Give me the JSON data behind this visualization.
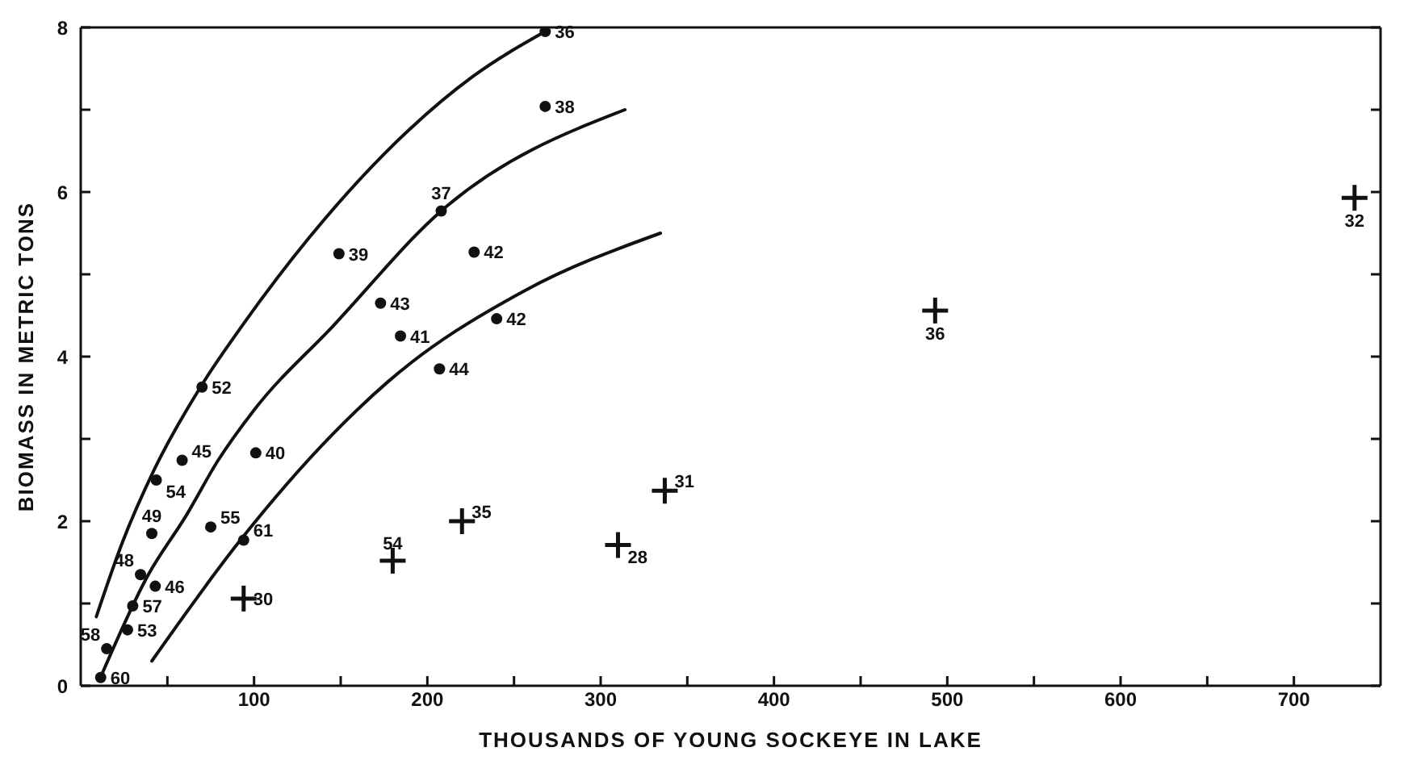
{
  "chart_data": {
    "type": "scatter",
    "xlabel": "THOUSANDS OF YOUNG SOCKEYE IN LAKE",
    "ylabel": "BIOMASS IN METRIC TONS",
    "xlim": [
      0,
      750
    ],
    "ylim": [
      0,
      8
    ],
    "xticks": [
      {
        "value": 50,
        "label": null
      },
      100,
      {
        "value": 150,
        "label": null
      },
      200,
      {
        "value": 250,
        "label": null
      },
      300,
      {
        "value": 350,
        "label": null
      },
      400,
      {
        "value": 450,
        "label": null
      },
      500,
      {
        "value": 550,
        "label": null
      },
      600,
      {
        "value": 650,
        "label": null
      },
      700
    ],
    "yticks": [
      0,
      {
        "value": 1,
        "label": null
      },
      2,
      {
        "value": 3,
        "label": null
      },
      4,
      {
        "value": 5,
        "label": null
      },
      6,
      {
        "value": 7,
        "label": null
      },
      8
    ],
    "grid": false,
    "series": [
      {
        "marker": "circle",
        "color": "#111111",
        "x": [
          11.5,
          15,
          27,
          30,
          34.5,
          43,
          41,
          43.6,
          58.5,
          70,
          75,
          94,
          101,
          149,
          173,
          184.5,
          208,
          207,
          227,
          240,
          268,
          268
        ],
        "values": [
          0.1,
          0.45,
          0.68,
          0.97,
          1.35,
          1.21,
          1.85,
          2.5,
          2.74,
          3.63,
          1.93,
          1.77,
          2.83,
          5.25,
          4.65,
          4.25,
          5.77,
          3.85,
          5.27,
          4.46,
          7.95,
          7.04
        ]
      },
      {
        "marker": "cross",
        "color": "#111111",
        "x": [
          94,
          180,
          220,
          310,
          337,
          493,
          735
        ],
        "values": [
          1.06,
          1.52,
          2.0,
          1.71,
          2.37,
          4.56,
          5.93
        ]
      },
      {
        "type": "line",
        "marker": "none",
        "line_style": "solid",
        "color": "#111111",
        "x": [
          9,
          24,
          42.5,
          70,
          94,
          132,
          174.5,
          226,
          268
        ],
        "values": [
          0.84,
          1.74,
          2.63,
          3.66,
          4.4,
          5.45,
          6.45,
          7.4,
          7.95
        ]
      },
      {
        "type": "line",
        "marker": "none",
        "line_style": "solid",
        "color": "#111111",
        "x": [
          12,
          39,
          60.6,
          79,
          100,
          145.5,
          208,
          314
        ],
        "values": [
          0.13,
          1.35,
          2.06,
          2.73,
          3.35,
          4.37,
          5.77,
          7.0
        ]
      },
      {
        "type": "line",
        "marker": "none",
        "line_style": "solid",
        "color": "#111111",
        "x": [
          41,
          91,
          145.5,
          177,
          256,
          334.5
        ],
        "values": [
          0.3,
          1.74,
          3.06,
          3.69,
          4.8,
          5.5
        ]
      }
    ],
    "annotations": [
      {
        "text": "60",
        "x": 11.5,
        "y": 0.1
      },
      {
        "text": "58",
        "x": 15,
        "y": 0.45
      },
      {
        "text": "53",
        "x": 27,
        "y": 0.68
      },
      {
        "text": "57",
        "x": 30,
        "y": 0.97
      },
      {
        "text": "48",
        "x": 34.5,
        "y": 1.35
      },
      {
        "text": "46",
        "x": 43,
        "y": 1.21
      },
      {
        "text": "49",
        "x": 41,
        "y": 1.85
      },
      {
        "text": "54",
        "x": 43.6,
        "y": 2.5
      },
      {
        "text": "45",
        "x": 58.5,
        "y": 2.74
      },
      {
        "text": "52",
        "x": 70,
        "y": 3.63
      },
      {
        "text": "55",
        "x": 75,
        "y": 1.93
      },
      {
        "text": "61",
        "x": 94,
        "y": 1.77
      },
      {
        "text": "40",
        "x": 101,
        "y": 2.83
      },
      {
        "text": "39",
        "x": 149,
        "y": 5.25
      },
      {
        "text": "43",
        "x": 173,
        "y": 4.65
      },
      {
        "text": "41",
        "x": 184.5,
        "y": 4.25
      },
      {
        "text": "37",
        "x": 208,
        "y": 5.77
      },
      {
        "text": "44",
        "x": 207,
        "y": 3.85
      },
      {
        "text": "42",
        "x": 227,
        "y": 5.27
      },
      {
        "text": "42",
        "x": 240,
        "y": 4.46
      },
      {
        "text": "36",
        "x": 268,
        "y": 7.95
      },
      {
        "text": "38",
        "x": 268,
        "y": 7.04
      },
      {
        "text": "30",
        "x": 94,
        "y": 1.06
      },
      {
        "text": "54",
        "x": 180,
        "y": 1.52
      },
      {
        "text": "35",
        "x": 220,
        "y": 2.0
      },
      {
        "text": "28",
        "x": 310,
        "y": 1.71
      },
      {
        "text": "31",
        "x": 337,
        "y": 2.37
      },
      {
        "text": "36",
        "x": 493,
        "y": 4.56
      },
      {
        "text": "32",
        "x": 735,
        "y": 5.93
      }
    ]
  }
}
